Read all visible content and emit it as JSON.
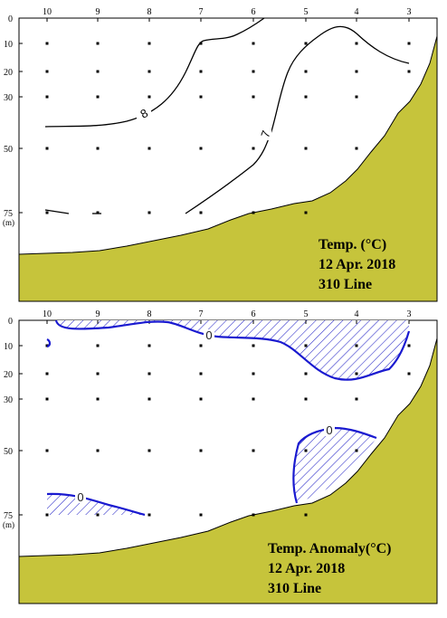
{
  "chart_data": [
    {
      "type": "contour",
      "title_lines": [
        "Temp. (°C)",
        "12 Apr. 2018",
        "310 Line"
      ],
      "stations": [
        "10",
        "9",
        "8",
        "7",
        "6",
        "5",
        "4",
        "3"
      ],
      "depth_ticks": [
        "0",
        "10",
        "20",
        "30",
        "50",
        "75"
      ],
      "depth_unit": "(m)",
      "ylim": [
        0,
        100
      ],
      "contours": [
        {
          "level": "8",
          "label": "8"
        },
        {
          "level": "7",
          "label": "7"
        }
      ],
      "colors": {
        "terrain": "#c6c43b",
        "contour": "#000000"
      }
    },
    {
      "type": "contour",
      "title_lines": [
        "Temp. Anomaly(°C)",
        "12 Apr. 2018",
        "310 Line"
      ],
      "stations": [
        "10",
        "9",
        "8",
        "7",
        "6",
        "5",
        "4",
        "3"
      ],
      "depth_ticks": [
        "0",
        "10",
        "20",
        "30",
        "50",
        "75"
      ],
      "depth_unit": "(m)",
      "ylim": [
        0,
        100
      ],
      "contours": [
        {
          "level": "0",
          "label": "0"
        }
      ],
      "hatched_regions": "negative anomaly",
      "colors": {
        "terrain": "#c6c43b",
        "contour": "#1a1ad0",
        "hatch": "#2828c8"
      }
    }
  ]
}
